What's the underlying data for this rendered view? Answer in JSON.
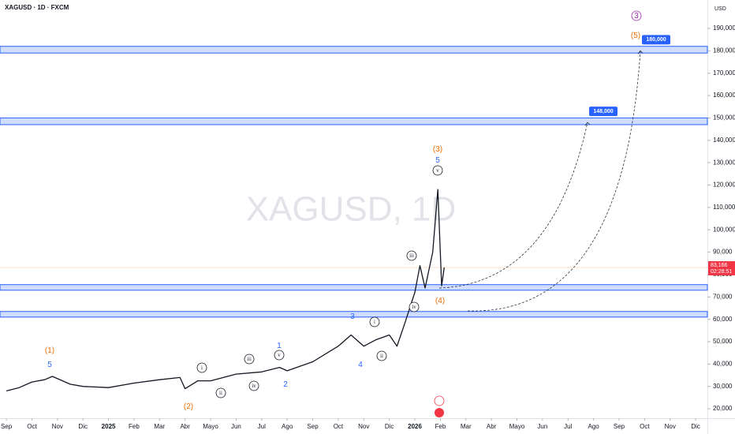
{
  "chart_data": {
    "type": "line",
    "title": "XAGUSD · 1D · FXCM",
    "watermark": "XAGUSD, 1D",
    "currency": "USD",
    "series": [
      {
        "name": "XAGUSD",
        "color": "#131722",
        "x": [
          0,
          0.5,
          1,
          1.5,
          1.8,
          2.5,
          3,
          4,
          5,
          6,
          6.8,
          7,
          7.5,
          8,
          9,
          10,
          10.7,
          11,
          12,
          13,
          13.5,
          14,
          14.5,
          15,
          15.3,
          15.6,
          16,
          16.2,
          16.4,
          16.7,
          16.9,
          17.05,
          17.15
        ],
        "values": [
          28000,
          29500,
          32000,
          33000,
          34500,
          31000,
          30000,
          29500,
          31500,
          33000,
          34000,
          29000,
          32500,
          32500,
          35500,
          36500,
          38500,
          37000,
          41000,
          48000,
          53000,
          48000,
          51000,
          53000,
          48000,
          58000,
          72000,
          84000,
          74000,
          90000,
          118000,
          75000,
          83166
        ]
      }
    ],
    "last_price": {
      "value": 83166,
      "label": "83,166"
    },
    "countdown": "02:28:51",
    "zones": [
      [
        179000,
        182000
      ],
      [
        147000,
        150000
      ],
      [
        73000,
        75500
      ],
      [
        61000,
        63500
      ]
    ],
    "projections": [
      {
        "value": 148000,
        "label": "148,000"
      },
      {
        "value": 180000,
        "label": "180,000"
      }
    ],
    "wave_labels": [
      "(1)",
      "5",
      "(2)",
      "i",
      "ii",
      "iii",
      "iv",
      "1",
      "v",
      "2",
      "3",
      "4",
      "i",
      "ii",
      "iii",
      "iv",
      "(3)",
      "5",
      "v",
      "(4)",
      "(5)",
      "3"
    ],
    "xlim": [
      -0.25,
      27.46
    ],
    "xticks": [
      {
        "value": 0,
        "label": "Sep"
      },
      {
        "value": 1,
        "label": "Oct"
      },
      {
        "value": 2,
        "label": "Nov"
      },
      {
        "value": 3,
        "label": "Dic"
      },
      {
        "value": 4,
        "label": "2025"
      },
      {
        "value": 5,
        "label": "Feb"
      },
      {
        "value": 6,
        "label": "Mar"
      },
      {
        "value": 7,
        "label": "Abr"
      },
      {
        "value": 8,
        "label": "Mayo"
      },
      {
        "value": 9,
        "label": "Jun"
      },
      {
        "value": 10,
        "label": "Jul"
      },
      {
        "value": 11,
        "label": "Ago"
      },
      {
        "value": 12,
        "label": "Sep"
      },
      {
        "value": 13,
        "label": "Oct"
      },
      {
        "value": 14,
        "label": "Nov"
      },
      {
        "value": 15,
        "label": "Dic"
      },
      {
        "value": 16,
        "label": "2026"
      },
      {
        "value": 17,
        "label": "Feb"
      },
      {
        "value": 18,
        "label": "Mar"
      },
      {
        "value": 19,
        "label": "Abr"
      },
      {
        "value": 20,
        "label": "Mayo"
      },
      {
        "value": 21,
        "label": "Jun"
      },
      {
        "value": 22,
        "label": "Jul"
      },
      {
        "value": 23,
        "label": "Ago"
      },
      {
        "value": 24,
        "label": "Sep"
      },
      {
        "value": 25,
        "label": "Oct"
      },
      {
        "value": 26,
        "label": "Nov"
      },
      {
        "value": 27,
        "label": "Dic"
      }
    ],
    "ylim": [
      15800,
      202700
    ],
    "yticks": [
      {
        "value": 20000,
        "label": "20,000"
      },
      {
        "value": 30000,
        "label": "30,000"
      },
      {
        "value": 40000,
        "label": "40,000"
      },
      {
        "value": 50000,
        "label": "50,000"
      },
      {
        "value": 60000,
        "label": "60,000"
      },
      {
        "value": 70000,
        "label": "70,000"
      },
      {
        "value": 80000,
        "label": "80,000"
      },
      {
        "value": 90000,
        "label": "90,000"
      },
      {
        "value": 100000,
        "label": "100,000"
      },
      {
        "value": 110000,
        "label": "110,000"
      },
      {
        "value": 120000,
        "label": "120,000"
      },
      {
        "value": 130000,
        "label": "130,000"
      },
      {
        "value": 140000,
        "label": "140,000"
      },
      {
        "value": 150000,
        "label": "150,000"
      },
      {
        "value": 160000,
        "label": "160,000"
      },
      {
        "value": 170000,
        "label": "170,000"
      },
      {
        "value": 180000,
        "label": "180,000"
      },
      {
        "value": 190000,
        "label": "190,000"
      }
    ]
  }
}
